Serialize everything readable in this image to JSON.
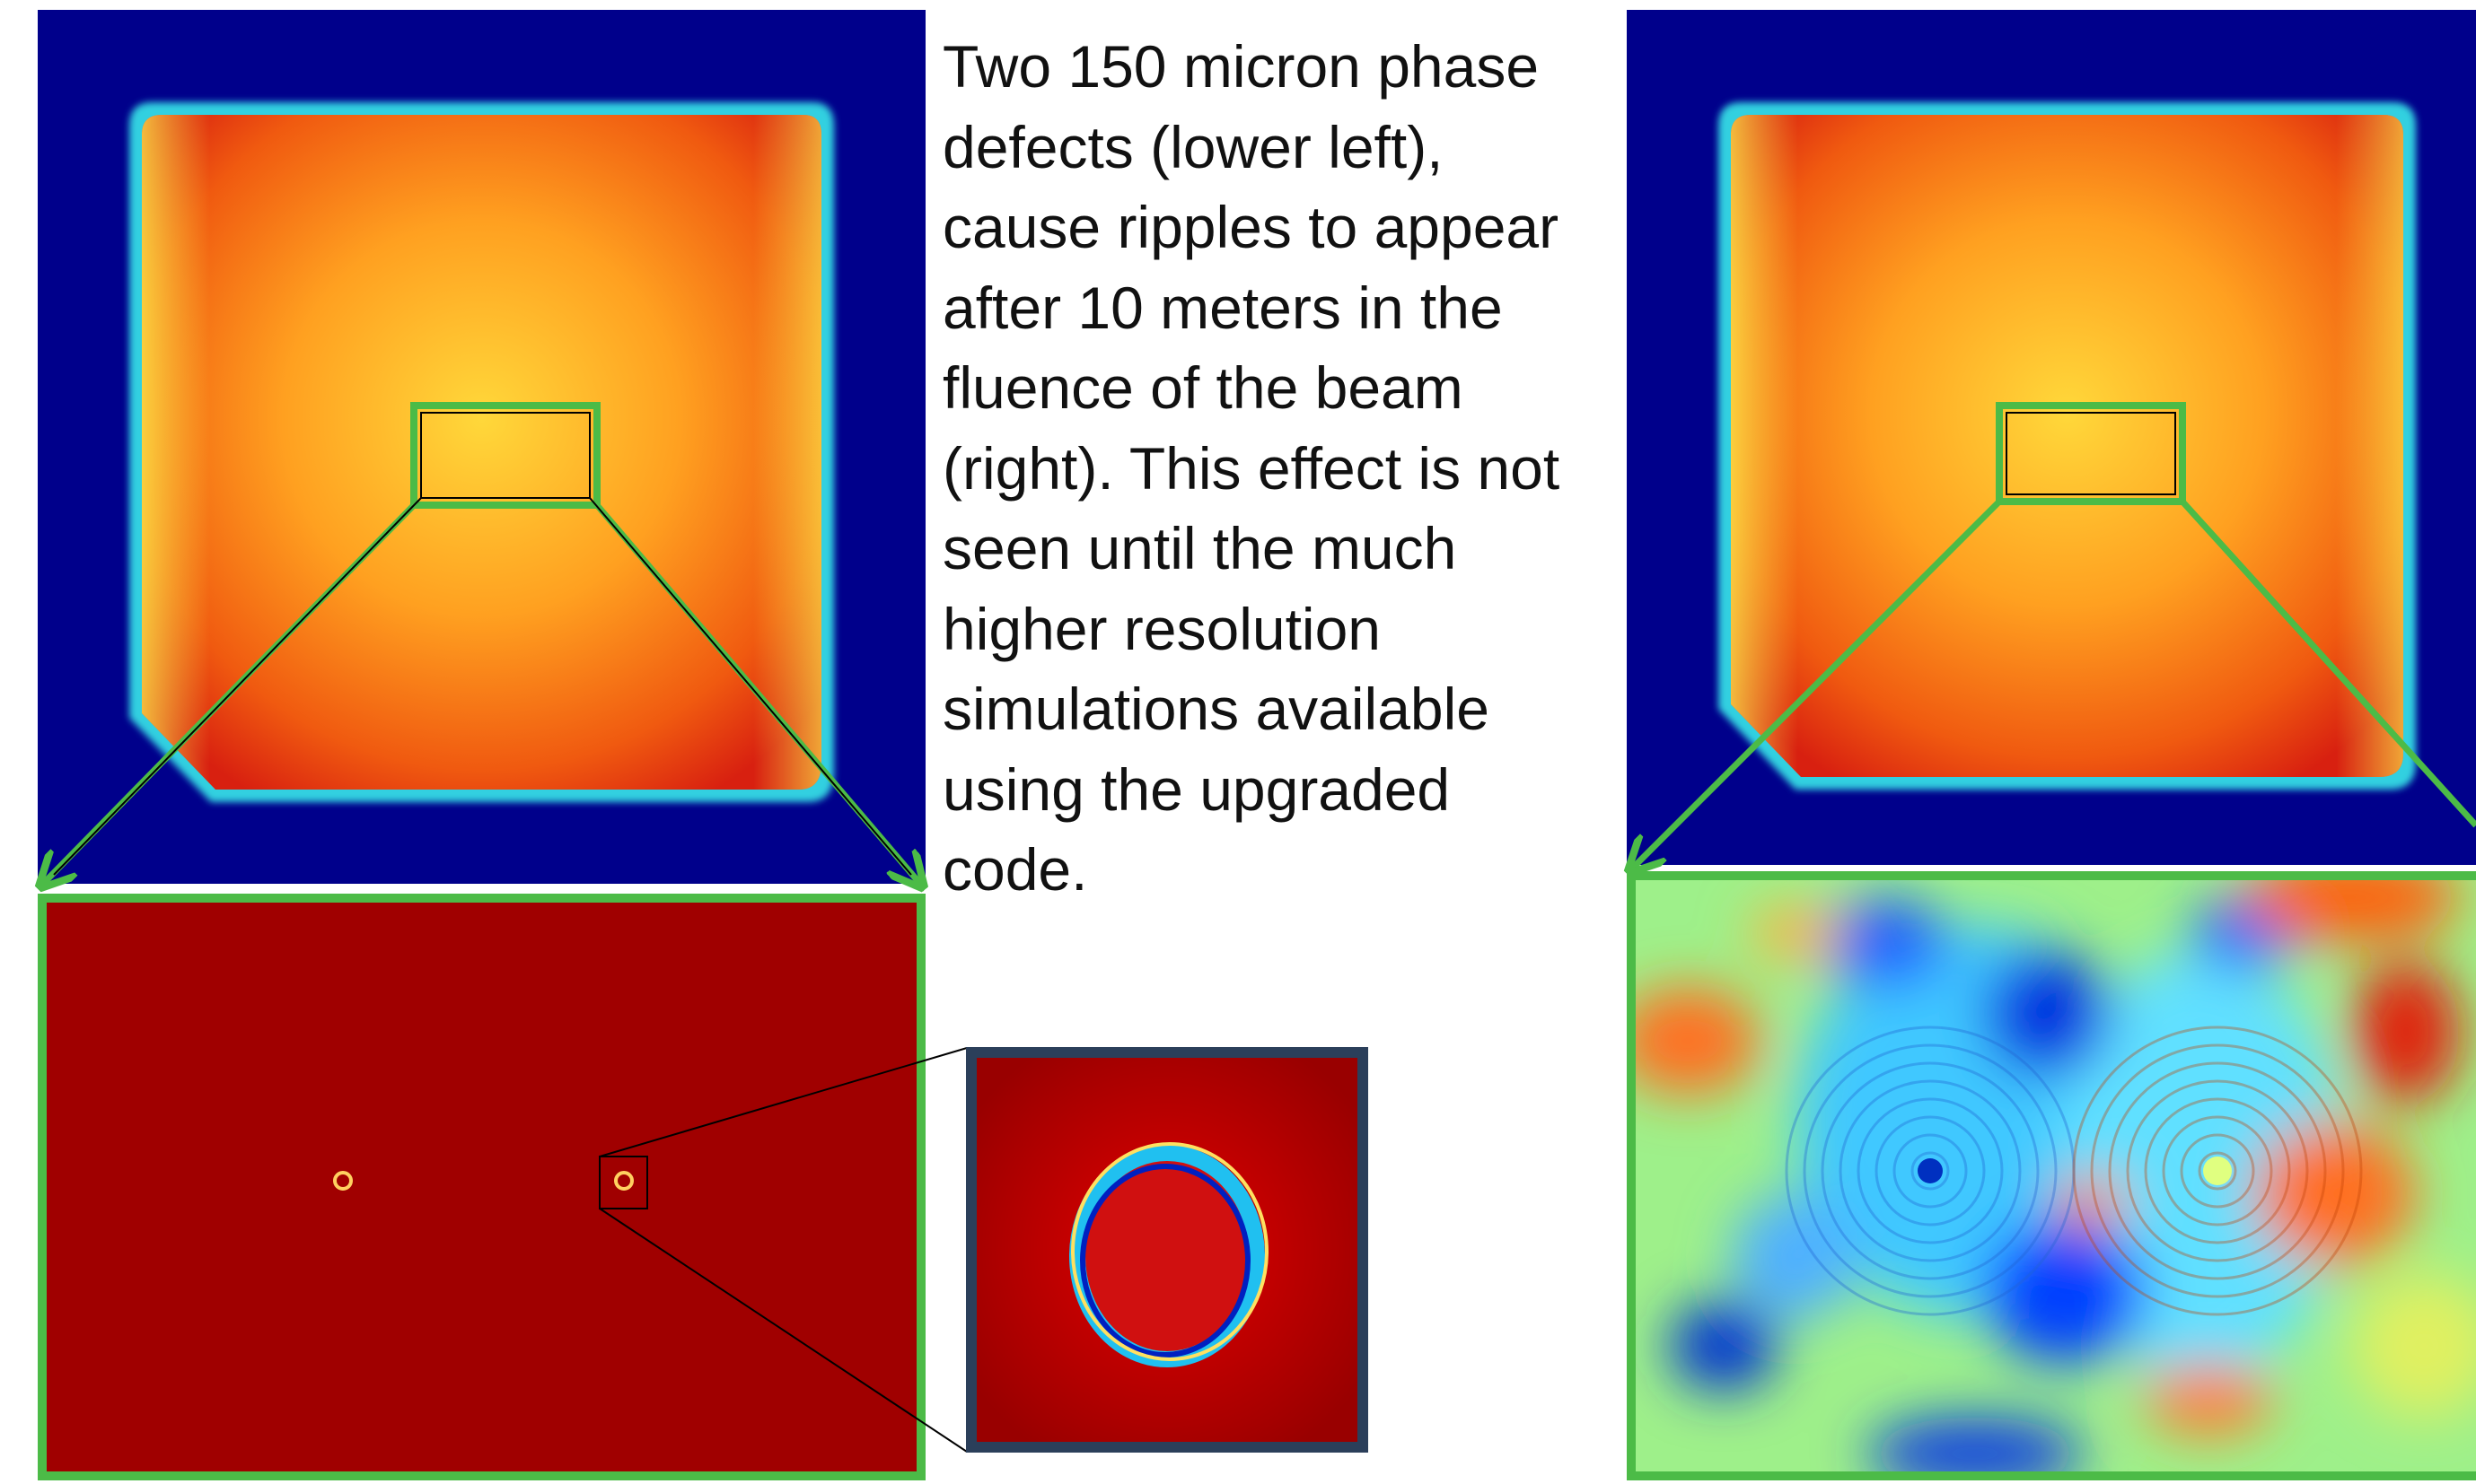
{
  "text": {
    "lines": [
      "Two 150 micron phase",
      "defects (lower left),",
      "cause ripples to appear",
      "after 10 meters in the",
      "fluence of the beam",
      "(right). This effect is not",
      "seen until the much",
      "higher resolution",
      "simulations available",
      "using the upgraded",
      "code."
    ]
  }
}
